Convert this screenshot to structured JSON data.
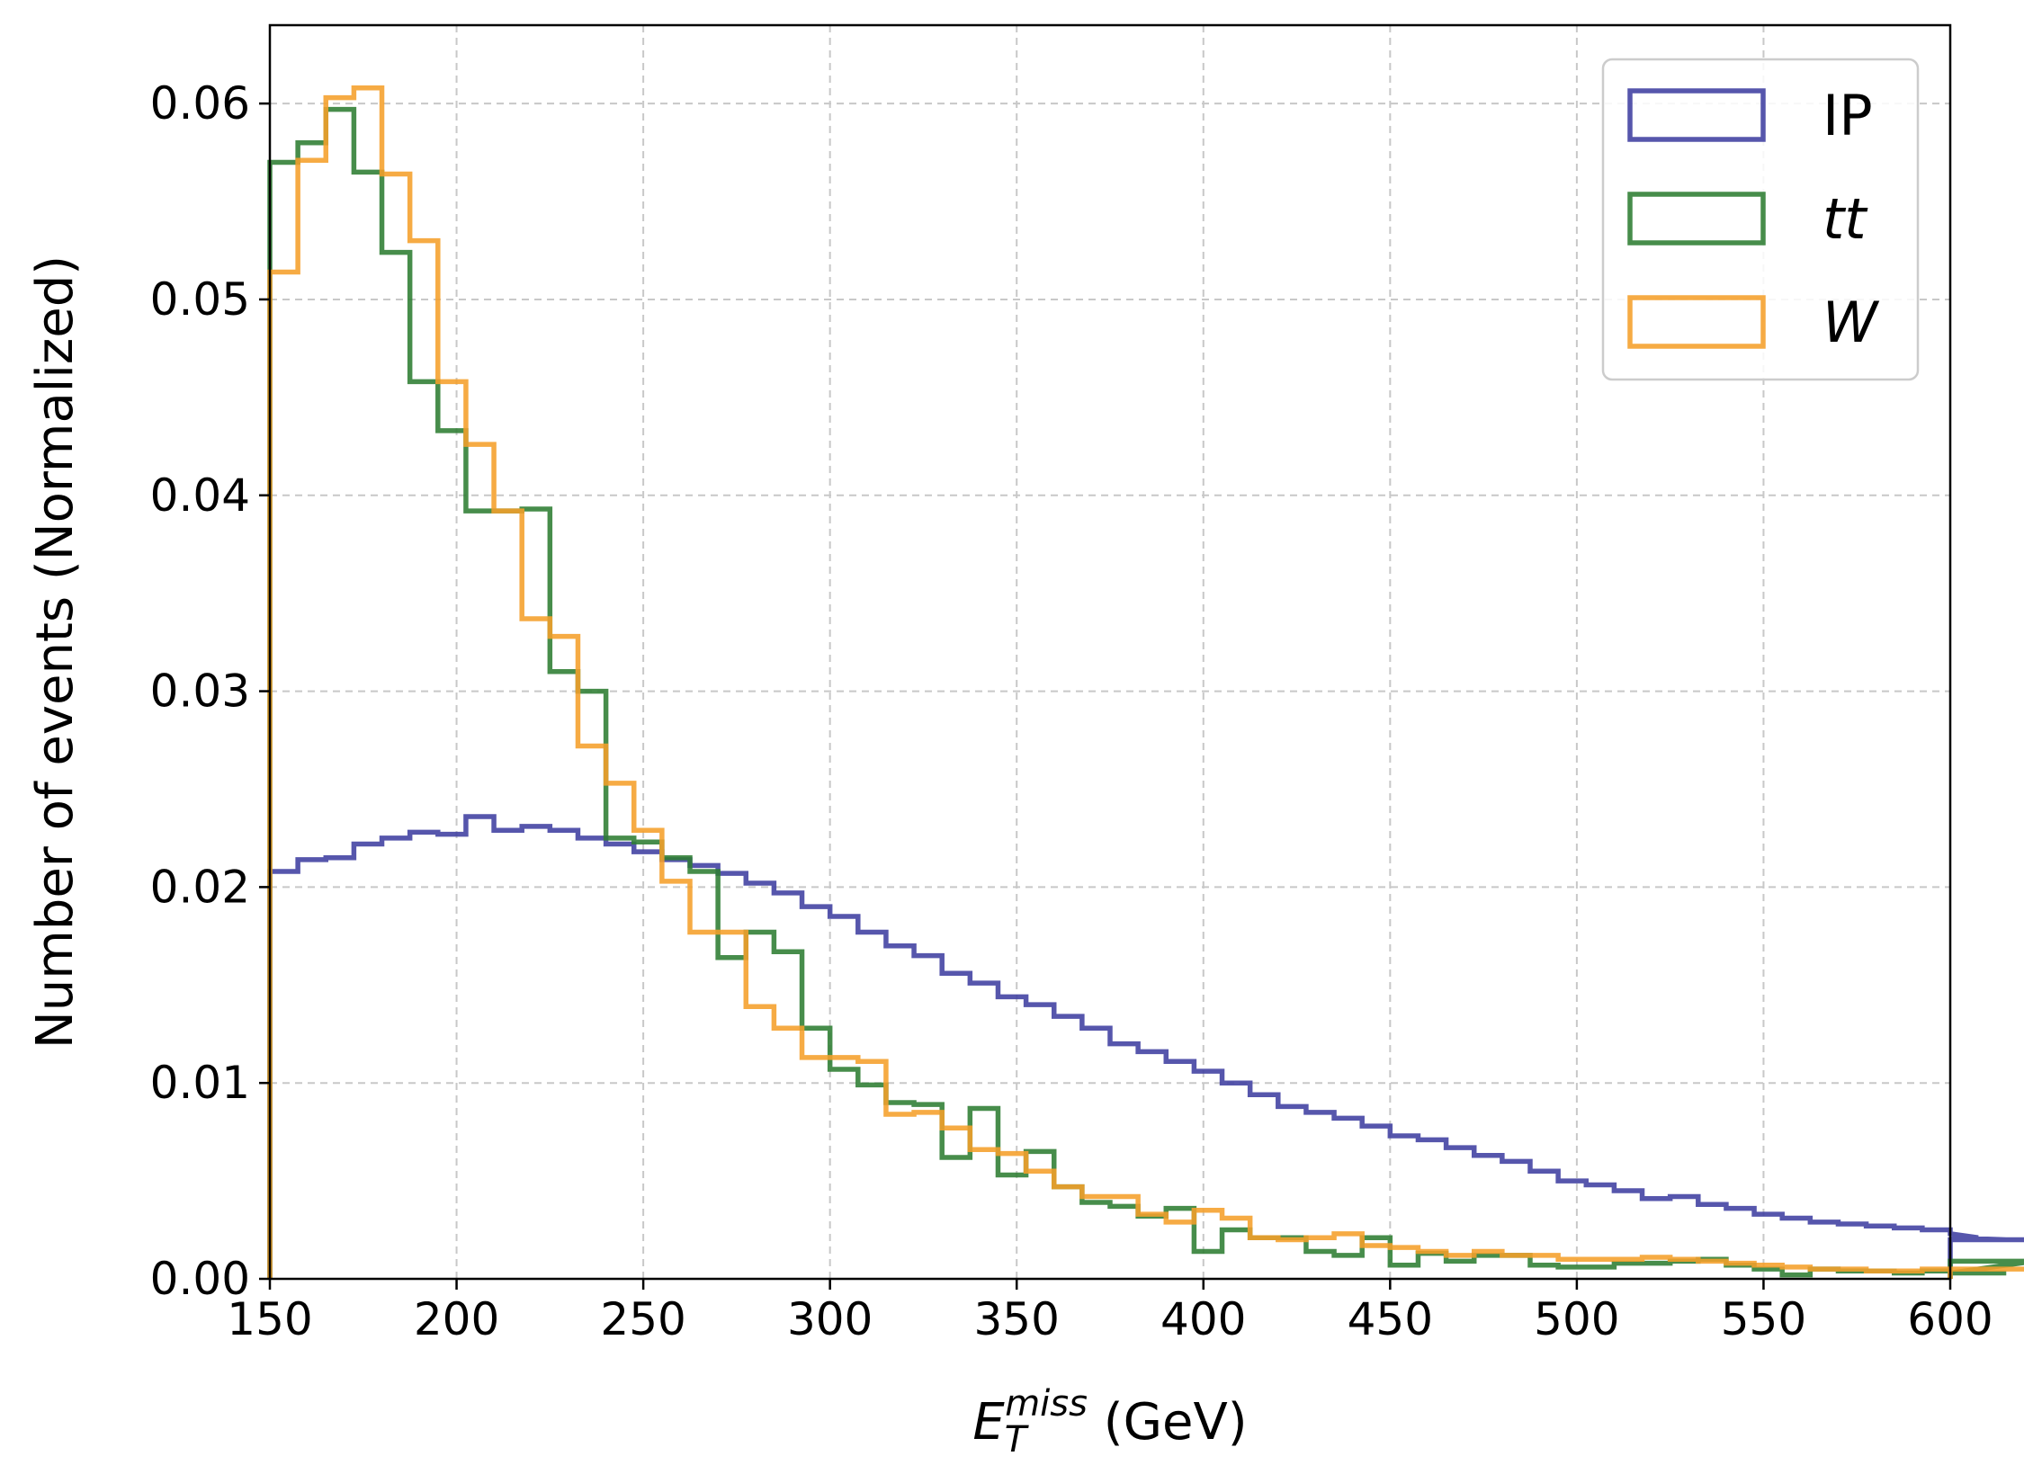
{
  "chart_data": {
    "type": "histogram",
    "xlabel": {
      "base": "E",
      "sub": "T",
      "sup": "miss",
      "suffix": " (GeV)"
    },
    "ylabel": "Number of events (Normalized)",
    "xlim": [
      150,
      600
    ],
    "ylim": [
      0,
      0.064
    ],
    "xticks": [
      150,
      200,
      250,
      300,
      350,
      400,
      450,
      500,
      550,
      600
    ],
    "yticks": [
      0.0,
      0.01,
      0.02,
      0.03,
      0.04,
      0.05,
      0.06
    ],
    "xtick_labels": [
      "150",
      "200",
      "250",
      "300",
      "350",
      "400",
      "450",
      "500",
      "550",
      "600"
    ],
    "ytick_labels": [
      "0.00",
      "0.01",
      "0.02",
      "0.03",
      "0.04",
      "0.05",
      "0.06"
    ],
    "grid": true,
    "legend_position": "top-right",
    "bin_width": 7.5,
    "series": [
      {
        "name": "IP",
        "italic": false,
        "color": "#3f3fa0",
        "values": [
          0.0208,
          0.0214,
          0.0215,
          0.0222,
          0.0225,
          0.0228,
          0.0227,
          0.0236,
          0.0229,
          0.0231,
          0.0229,
          0.0225,
          0.0222,
          0.0218,
          0.0214,
          0.0211,
          0.0207,
          0.0202,
          0.0197,
          0.019,
          0.0185,
          0.0177,
          0.017,
          0.0165,
          0.0156,
          0.0151,
          0.0144,
          0.014,
          0.0134,
          0.0128,
          0.012,
          0.0116,
          0.0111,
          0.0106,
          0.01,
          0.0094,
          0.0088,
          0.0085,
          0.0082,
          0.0078,
          0.0073,
          0.0071,
          0.0067,
          0.0063,
          0.006,
          0.0055,
          0.005,
          0.0048,
          0.0045,
          0.0041,
          0.0042,
          0.0038,
          0.0036,
          0.0033,
          0.0031,
          0.0029,
          0.0028,
          0.0027,
          0.0026,
          0.0025,
          0.0023,
          0.0021,
          0.002,
          0.002
        ]
      },
      {
        "name": "tt",
        "italic": true,
        "color": "#2e7d32",
        "values": [
          0.057,
          0.058,
          0.0597,
          0.0565,
          0.0524,
          0.0458,
          0.0433,
          0.0392,
          0.0392,
          0.0393,
          0.031,
          0.03,
          0.0225,
          0.0223,
          0.0215,
          0.0208,
          0.0164,
          0.0177,
          0.0167,
          0.0128,
          0.0107,
          0.0099,
          0.009,
          0.0089,
          0.0062,
          0.0087,
          0.0053,
          0.0065,
          0.0047,
          0.0039,
          0.0037,
          0.0032,
          0.0036,
          0.0014,
          0.0025,
          0.0021,
          0.0021,
          0.0014,
          0.0012,
          0.0021,
          0.0007,
          0.0013,
          0.0009,
          0.0012,
          0.0012,
          0.0007,
          0.0006,
          0.0006,
          0.0008,
          0.0008,
          0.0009,
          0.001,
          0.0007,
          0.0005,
          0.0002,
          0.0005,
          0.0004,
          0.0004,
          0.0003,
          0.0004,
          0.0003,
          0.0003,
          0.0003,
          0.0009
        ]
      },
      {
        "name": "W",
        "italic": true,
        "color": "#f59f2a",
        "values": [
          0.0514,
          0.0571,
          0.0603,
          0.0608,
          0.0564,
          0.053,
          0.0458,
          0.0426,
          0.0392,
          0.0337,
          0.0328,
          0.0272,
          0.0253,
          0.0229,
          0.0203,
          0.0177,
          0.0177,
          0.0139,
          0.0128,
          0.0113,
          0.0113,
          0.0111,
          0.0084,
          0.0085,
          0.0077,
          0.0066,
          0.0064,
          0.0055,
          0.0047,
          0.0042,
          0.0042,
          0.0033,
          0.0029,
          0.0035,
          0.0031,
          0.0021,
          0.002,
          0.0021,
          0.0023,
          0.0017,
          0.0016,
          0.0014,
          0.0012,
          0.0014,
          0.0012,
          0.0012,
          0.001,
          0.001,
          0.001,
          0.0011,
          0.001,
          0.0009,
          0.0008,
          0.0007,
          0.0006,
          0.0005,
          0.0005,
          0.0004,
          0.0004,
          0.0005,
          0.0005,
          0.0005,
          0.0005,
          0.0005
        ]
      }
    ]
  }
}
